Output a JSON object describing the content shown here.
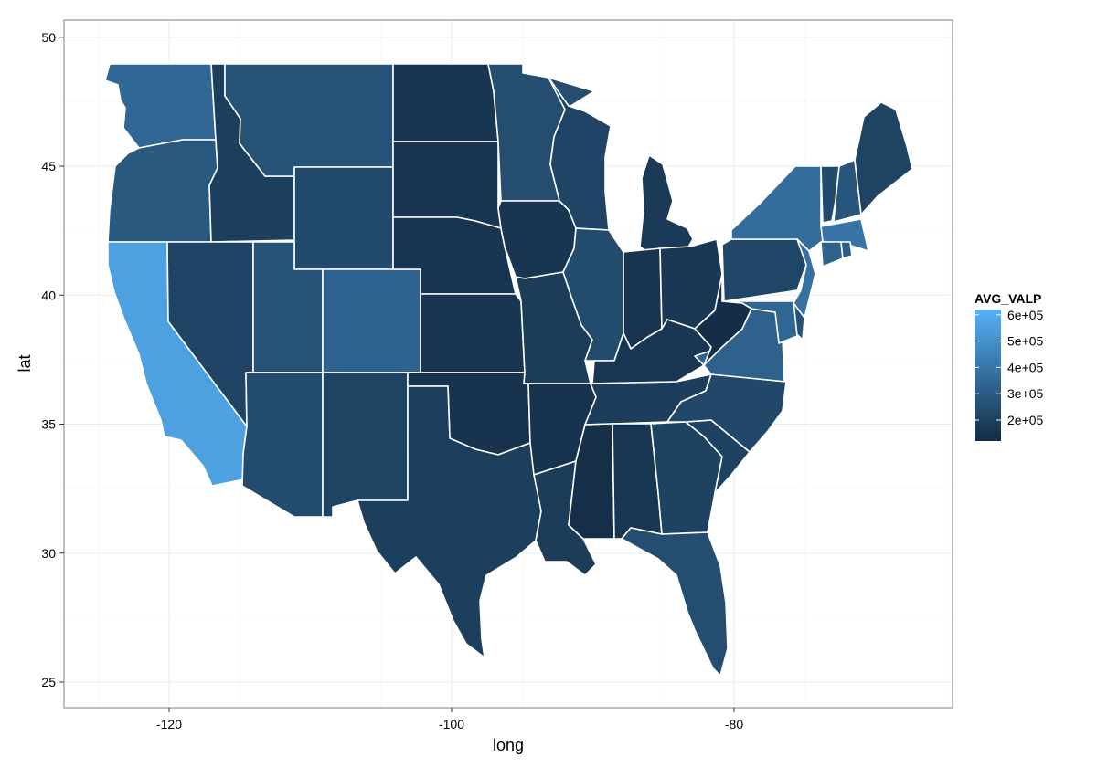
{
  "chart_data": {
    "type": "choropleth",
    "xlabel": "long",
    "ylabel": "lat",
    "xlim": [
      -126,
      -66
    ],
    "ylim": [
      24,
      51
    ],
    "x_ticks": [
      -120,
      -100,
      -80
    ],
    "y_ticks": [
      25,
      30,
      35,
      40,
      45,
      50
    ],
    "x_tick_labels": [
      "-120",
      "-100",
      "-80"
    ],
    "y_tick_labels": [
      "25",
      "30",
      "35",
      "40",
      "45",
      "50"
    ],
    "grid": true,
    "legend": {
      "title": "AVG_VALP",
      "placement": "right",
      "min": 120000,
      "max": 620000,
      "ticks": [
        200000,
        300000,
        400000,
        500000,
        600000
      ],
      "tick_labels": [
        "2e+05",
        "3e+05",
        "4e+05",
        "5e+05",
        "6e+05"
      ],
      "low_color": "#132B43",
      "high_color": "#56B1F7"
    },
    "series_name": "AVG_VALP",
    "states": [
      {
        "id": "WA",
        "value": 345000
      },
      {
        "id": "OR",
        "value": 290000
      },
      {
        "id": "CA",
        "value": 560000
      },
      {
        "id": "ID",
        "value": 195000
      },
      {
        "id": "NV",
        "value": 215000
      },
      {
        "id": "MT",
        "value": 265000
      },
      {
        "id": "WY",
        "value": 235000
      },
      {
        "id": "UT",
        "value": 265000
      },
      {
        "id": "AZ",
        "value": 240000
      },
      {
        "id": "CO",
        "value": 330000
      },
      {
        "id": "NM",
        "value": 210000
      },
      {
        "id": "ND",
        "value": 160000
      },
      {
        "id": "SD",
        "value": 160000
      },
      {
        "id": "NE",
        "value": 160000
      },
      {
        "id": "KS",
        "value": 160000
      },
      {
        "id": "OK",
        "value": 150000
      },
      {
        "id": "TX",
        "value": 195000
      },
      {
        "id": "MN",
        "value": 245000
      },
      {
        "id": "IA",
        "value": 160000
      },
      {
        "id": "MO",
        "value": 185000
      },
      {
        "id": "AR",
        "value": 150000
      },
      {
        "id": "LA",
        "value": 185000
      },
      {
        "id": "WI",
        "value": 215000
      },
      {
        "id": "IL",
        "value": 240000
      },
      {
        "id": "MI",
        "value": 175000
      },
      {
        "id": "IN",
        "value": 155000
      },
      {
        "id": "OH",
        "value": 170000
      },
      {
        "id": "KY",
        "value": 165000
      },
      {
        "id": "TN",
        "value": 190000
      },
      {
        "id": "MS",
        "value": 135000
      },
      {
        "id": "AL",
        "value": 165000
      },
      {
        "id": "GA",
        "value": 205000
      },
      {
        "id": "FL",
        "value": 245000
      },
      {
        "id": "SC",
        "value": 205000
      },
      {
        "id": "NC",
        "value": 225000
      },
      {
        "id": "VA",
        "value": 325000
      },
      {
        "id": "WV",
        "value": 130000
      },
      {
        "id": "PA",
        "value": 220000
      },
      {
        "id": "NY",
        "value": 365000
      },
      {
        "id": "VT",
        "value": 235000
      },
      {
        "id": "NH",
        "value": 275000
      },
      {
        "id": "ME",
        "value": 210000
      },
      {
        "id": "MA",
        "value": 395000
      },
      {
        "id": "CT",
        "value": 325000
      },
      {
        "id": "RI",
        "value": 305000
      },
      {
        "id": "NJ",
        "value": 380000
      },
      {
        "id": "DE",
        "value": 265000
      },
      {
        "id": "MD",
        "value": 340000
      }
    ]
  }
}
